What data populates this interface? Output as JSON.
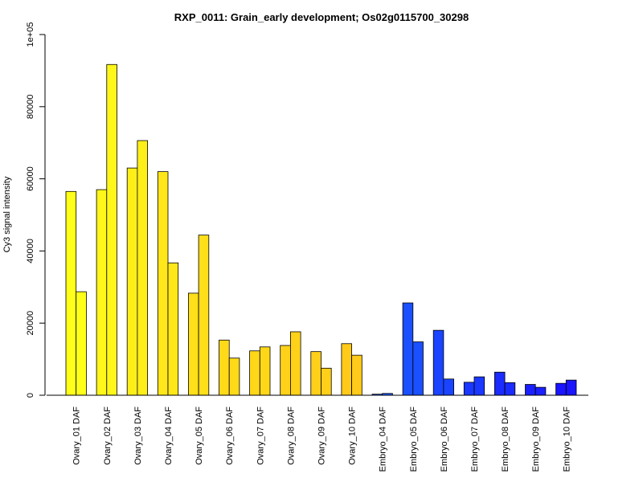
{
  "chart_data": {
    "type": "bar",
    "title": "RXP_0011: Grain_early development; Os02g0115700_30298",
    "xlabel": "",
    "ylabel": "Cy3 signal intensity",
    "ylim": [
      0,
      100000
    ],
    "yticks": [
      {
        "value": 0,
        "label": "0"
      },
      {
        "value": 20000,
        "label": "20000"
      },
      {
        "value": 40000,
        "label": "40000"
      },
      {
        "value": 60000,
        "label": "60000"
      },
      {
        "value": 80000,
        "label": "80000"
      },
      {
        "value": 100000,
        "label": "1e+05"
      }
    ],
    "grid": false,
    "categories": [
      "Ovary_01 DAF",
      "Ovary_02 DAF",
      "Ovary_03 DAF",
      "Ovary_04 DAF",
      "Ovary_05 DAF",
      "Ovary_06 DAF",
      "Ovary_07 DAF",
      "Ovary_08 DAF",
      "Ovary_09 DAF",
      "Ovary_10 DAF",
      "Embryo_04 DAF",
      "Embryo_05 DAF",
      "Embryo_06 DAF",
      "Embryo_07 DAF",
      "Embryo_08 DAF",
      "Embryo_09 DAF",
      "Embryo_10 DAF"
    ],
    "colors": [
      "#FFFF19",
      "#FFF719",
      "#FFEF19",
      "#FFE719",
      "#FFDF19",
      "#FFDA19",
      "#FFD719",
      "#FFD219",
      "#FFCF19",
      "#FFCA19",
      "#1A5CFF",
      "#1A50FF",
      "#1A44FF",
      "#1A38FF",
      "#1A2CFF",
      "#1A20FF",
      "#1A14FF"
    ],
    "series": [
      {
        "values": [
          56500,
          57000,
          63000,
          62000,
          28300,
          15300,
          12300,
          13800,
          12100,
          14300,
          300,
          25600,
          18000,
          3600,
          6400,
          3000,
          3300
        ]
      },
      {
        "values": [
          28700,
          91700,
          70600,
          36700,
          44400,
          10300,
          13400,
          17600,
          7500,
          11100,
          500,
          14800,
          4500,
          5100,
          3500,
          2200,
          4200
        ]
      }
    ]
  }
}
